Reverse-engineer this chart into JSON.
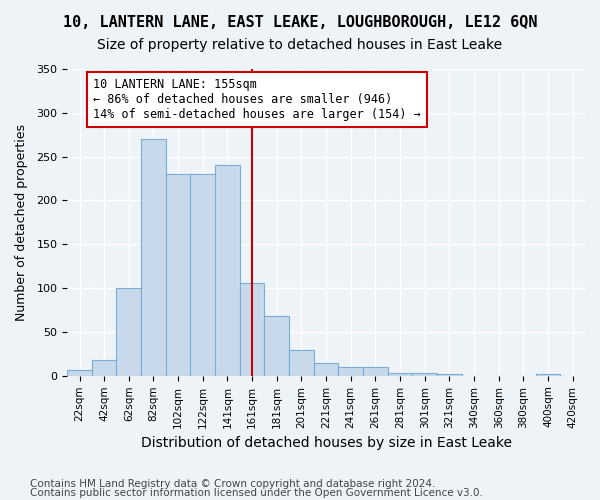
{
  "title1": "10, LANTERN LANE, EAST LEAKE, LOUGHBOROUGH, LE12 6QN",
  "title2": "Size of property relative to detached houses in East Leake",
  "xlabel": "Distribution of detached houses by size in East Leake",
  "ylabel": "Number of detached properties",
  "categories": [
    "22sqm",
    "42sqm",
    "62sqm",
    "82sqm",
    "102sqm",
    "122sqm",
    "141sqm",
    "161sqm",
    "181sqm",
    "201sqm",
    "221sqm",
    "241sqm",
    "261sqm",
    "281sqm",
    "301sqm",
    "321sqm",
    "340sqm",
    "360sqm",
    "380sqm",
    "400sqm",
    "420sqm"
  ],
  "bar_values": [
    7,
    18,
    100,
    270,
    230,
    230,
    240,
    106,
    68,
    30,
    15,
    10,
    10,
    3,
    3,
    2,
    0,
    0,
    0,
    2,
    0
  ],
  "bar_color": "#c9d9ec",
  "bar_edge_color": "#7aadd4",
  "vline_x": 7.0,
  "vline_color": "#cc0000",
  "annotation_text": "10 LANTERN LANE: 155sqm\n← 86% of detached houses are smaller (946)\n14% of semi-detached houses are larger (154) →",
  "annotation_box_color": "#ffffff",
  "annotation_box_edge_color": "#cc0000",
  "ylim": [
    0,
    350
  ],
  "yticks": [
    0,
    50,
    100,
    150,
    200,
    250,
    300,
    350
  ],
  "footer1": "Contains HM Land Registry data © Crown copyright and database right 2024.",
  "footer2": "Contains public sector information licensed under the Open Government Licence v3.0.",
  "bg_color": "#eef3f8",
  "plot_bg_color": "#eef3f8",
  "grid_color": "#ffffff",
  "title1_fontsize": 11,
  "title2_fontsize": 10,
  "xlabel_fontsize": 10,
  "ylabel_fontsize": 9,
  "annotation_fontsize": 8.5,
  "footer_fontsize": 7.5
}
